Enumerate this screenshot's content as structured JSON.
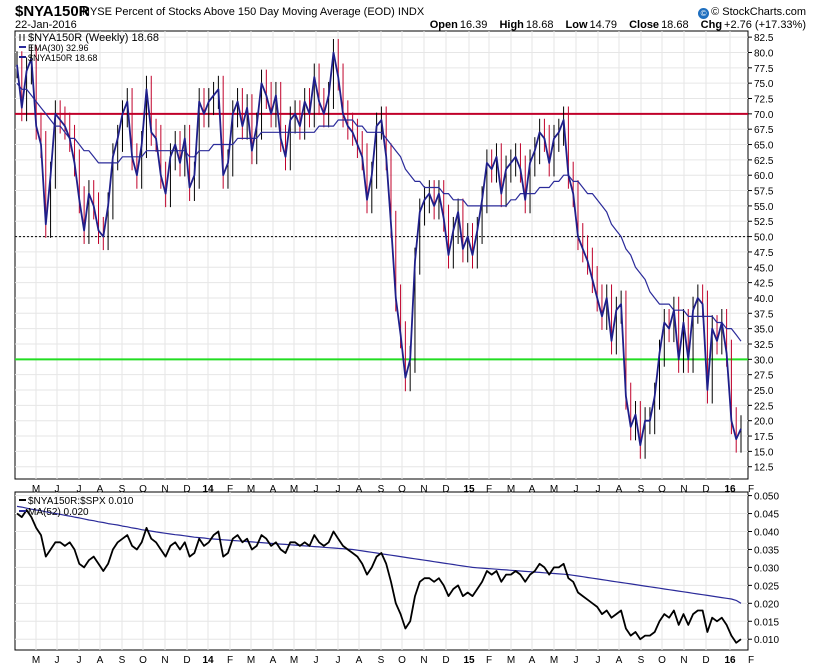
{
  "header": {
    "symbol": "$NYA150R",
    "description": "NYSE Percent of Stocks Above 150 Day Moving Average (EOD)  INDX",
    "date": "22-Jan-2016",
    "copyright": "© StockCharts.com",
    "ohlc": {
      "open_label": "Open",
      "open": "16.39",
      "high_label": "High",
      "high": "18.68",
      "low_label": "Low",
      "low": "14.79",
      "close_label": "Close",
      "close": "18.68",
      "chg_label": "Chg",
      "chg": "+2.76 (+17.33%)"
    }
  },
  "colors": {
    "price": "#1f1f8a",
    "ema": "#2b2b9a",
    "red_line": "#c0002a",
    "green_line": "#22dd22",
    "ratio": "#000000",
    "ratio_ma": "#2b2b9a",
    "grid": "#e6e6e6"
  },
  "chart_data": [
    {
      "type": "line",
      "title": "$NYA150R NYSE Percent of Stocks Above 150 Day Moving Average (EOD)",
      "legend": [
        "$NYA150R (Weekly) 18.68",
        "EMA(30) 32.96",
        "$NYA150R 18.68"
      ],
      "x_ticks": [
        "M",
        "J",
        "J",
        "A",
        "S",
        "O",
        "N",
        "D",
        "14",
        "F",
        "M",
        "A",
        "M",
        "J",
        "J",
        "A",
        "S",
        "O",
        "N",
        "D",
        "15",
        "F",
        "M",
        "A",
        "M",
        "J",
        "J",
        "A",
        "S",
        "O",
        "N",
        "D",
        "16",
        "F"
      ],
      "y_ticks": [
        "82.5",
        "80.0",
        "77.5",
        "75.0",
        "72.5",
        "70.0",
        "67.5",
        "65.0",
        "62.5",
        "60.0",
        "57.5",
        "55.0",
        "52.5",
        "50.0",
        "47.5",
        "45.0",
        "42.5",
        "40.0",
        "37.5",
        "35.0",
        "32.5",
        "30.0",
        "27.5",
        "25.0",
        "22.5",
        "20.0",
        "17.5",
        "15.0",
        "12.5"
      ],
      "ylim": [
        10.5,
        83.5
      ],
      "reference_lines": [
        {
          "value": 70,
          "style": "red"
        },
        {
          "value": 50,
          "style": "dotted"
        },
        {
          "value": 30,
          "style": "green"
        }
      ],
      "series": [
        {
          "name": "$NYA150R (Weekly)",
          "values": [
            78,
            71,
            77,
            79,
            68,
            65,
            52,
            60,
            70,
            69,
            68,
            66,
            62,
            56,
            51,
            57,
            55,
            51,
            50,
            55,
            63,
            66,
            70,
            72,
            63,
            60,
            65,
            74,
            67,
            66,
            60,
            57,
            63,
            65,
            62,
            66,
            58,
            60,
            72,
            70,
            72,
            73,
            74,
            60,
            62,
            70,
            72,
            68,
            71,
            64,
            68,
            75,
            73,
            70,
            73,
            66,
            63,
            69,
            70,
            68,
            72,
            70,
            76,
            72,
            70,
            73,
            80,
            76,
            70,
            68,
            67,
            65,
            63,
            56,
            60,
            68,
            69,
            63,
            52,
            40,
            34,
            27,
            30,
            46,
            54,
            56,
            57,
            55,
            57,
            53,
            47,
            51,
            54,
            48,
            50,
            47,
            51,
            56,
            62,
            61,
            63,
            57,
            61,
            62,
            63,
            61,
            56,
            62,
            64,
            67,
            66,
            62,
            66,
            67,
            69,
            60,
            57,
            50,
            48,
            46,
            43,
            40,
            37,
            40,
            33,
            38,
            39,
            24,
            19,
            21,
            16,
            20,
            20,
            24,
            31,
            36,
            35,
            38,
            30,
            36,
            30,
            38,
            40,
            39,
            25,
            35,
            33,
            36,
            31,
            20,
            17,
            18.68
          ]
        },
        {
          "name": "EMA(30)",
          "values": [
            75,
            74,
            74,
            73,
            72,
            71,
            70,
            69,
            68,
            68,
            67,
            66,
            66,
            65,
            64,
            64,
            63,
            62,
            62,
            62,
            62,
            62,
            63,
            63,
            63,
            63,
            63,
            64,
            64,
            64,
            64,
            64,
            64,
            64,
            64,
            64,
            63,
            63,
            64,
            64,
            64,
            65,
            65,
            65,
            65,
            65,
            66,
            66,
            66,
            66,
            66,
            67,
            67,
            67,
            67,
            67,
            67,
            67,
            67,
            67,
            67,
            67,
            67,
            68,
            68,
            68,
            68,
            69,
            69,
            69,
            69,
            68,
            68,
            67,
            67,
            67,
            67,
            66,
            65,
            64,
            63,
            61,
            60,
            59,
            59,
            58,
            58,
            58,
            58,
            57,
            57,
            56,
            56,
            56,
            55,
            55,
            55,
            55,
            55,
            55,
            55,
            55,
            55,
            56,
            56,
            57,
            57,
            57,
            57,
            58,
            58,
            58,
            59,
            59,
            60,
            60,
            59,
            59,
            58,
            57,
            57,
            56,
            55,
            54,
            52,
            51,
            50,
            48,
            47,
            45,
            44,
            43,
            41,
            40,
            39,
            39,
            39,
            38,
            38,
            38,
            37,
            37,
            37,
            37,
            37,
            37,
            36,
            36,
            35,
            35,
            34,
            32.96
          ]
        }
      ]
    },
    {
      "type": "line",
      "title": "$NYA150R:$SPX",
      "legend": [
        "$NYA150R:$SPX 0.010",
        "MA(52) 0.020"
      ],
      "x_ticks": [
        "M",
        "J",
        "J",
        "A",
        "S",
        "O",
        "N",
        "D",
        "14",
        "F",
        "M",
        "A",
        "M",
        "J",
        "J",
        "A",
        "S",
        "O",
        "N",
        "D",
        "15",
        "F",
        "M",
        "A",
        "M",
        "J",
        "J",
        "A",
        "S",
        "O",
        "N",
        "D",
        "16",
        "F"
      ],
      "y_ticks": [
        "0.050",
        "0.045",
        "0.040",
        "0.035",
        "0.030",
        "0.025",
        "0.020",
        "0.015",
        "0.010"
      ],
      "ylim": [
        0.007,
        0.051
      ],
      "series": [
        {
          "name": "$NYA150R:$SPX",
          "values": [
            0.045,
            0.044,
            0.046,
            0.044,
            0.041,
            0.039,
            0.033,
            0.035,
            0.037,
            0.037,
            0.036,
            0.037,
            0.035,
            0.031,
            0.03,
            0.032,
            0.033,
            0.031,
            0.029,
            0.031,
            0.035,
            0.037,
            0.038,
            0.039,
            0.036,
            0.035,
            0.037,
            0.041,
            0.038,
            0.037,
            0.035,
            0.033,
            0.036,
            0.037,
            0.035,
            0.037,
            0.033,
            0.034,
            0.038,
            0.036,
            0.037,
            0.039,
            0.04,
            0.033,
            0.034,
            0.038,
            0.039,
            0.037,
            0.038,
            0.035,
            0.036,
            0.039,
            0.038,
            0.036,
            0.037,
            0.035,
            0.034,
            0.037,
            0.037,
            0.036,
            0.037,
            0.036,
            0.039,
            0.037,
            0.036,
            0.037,
            0.04,
            0.038,
            0.036,
            0.035,
            0.034,
            0.033,
            0.031,
            0.028,
            0.03,
            0.033,
            0.034,
            0.031,
            0.026,
            0.02,
            0.017,
            0.013,
            0.015,
            0.022,
            0.026,
            0.027,
            0.027,
            0.026,
            0.027,
            0.025,
            0.022,
            0.024,
            0.025,
            0.022,
            0.023,
            0.022,
            0.024,
            0.026,
            0.029,
            0.028,
            0.029,
            0.026,
            0.028,
            0.028,
            0.029,
            0.028,
            0.026,
            0.028,
            0.029,
            0.031,
            0.03,
            0.028,
            0.03,
            0.03,
            0.031,
            0.027,
            0.026,
            0.023,
            0.022,
            0.021,
            0.02,
            0.019,
            0.017,
            0.018,
            0.016,
            0.017,
            0.018,
            0.013,
            0.011,
            0.012,
            0.01,
            0.011,
            0.011,
            0.012,
            0.015,
            0.017,
            0.016,
            0.018,
            0.014,
            0.017,
            0.014,
            0.017,
            0.018,
            0.018,
            0.012,
            0.016,
            0.015,
            0.016,
            0.014,
            0.011,
            0.009,
            0.01
          ]
        },
        {
          "name": "MA(52)",
          "values": [
            0.047,
            0.0468,
            0.0465,
            0.0462,
            0.046,
            0.0458,
            0.0455,
            0.0452,
            0.045,
            0.0448,
            0.0445,
            0.0443,
            0.044,
            0.0438,
            0.0435,
            0.0432,
            0.043,
            0.0427,
            0.0425,
            0.0422,
            0.042,
            0.0418,
            0.0415,
            0.0413,
            0.041,
            0.0408,
            0.0405,
            0.0403,
            0.0401,
            0.0399,
            0.0397,
            0.0395,
            0.0393,
            0.0391,
            0.039,
            0.0388,
            0.0386,
            0.0384,
            0.0383,
            0.0382,
            0.038,
            0.0379,
            0.0378,
            0.0377,
            0.0376,
            0.0375,
            0.0374,
            0.0373,
            0.0372,
            0.0371,
            0.037,
            0.0369,
            0.0368,
            0.0367,
            0.0366,
            0.0365,
            0.0364,
            0.0363,
            0.0362,
            0.0361,
            0.036,
            0.0359,
            0.0358,
            0.0357,
            0.0356,
            0.0355,
            0.0354,
            0.0353,
            0.0352,
            0.0351,
            0.035,
            0.0348,
            0.0346,
            0.0344,
            0.0342,
            0.034,
            0.0338,
            0.0336,
            0.0334,
            0.0332,
            0.033,
            0.0328,
            0.0326,
            0.0324,
            0.0322,
            0.032,
            0.0318,
            0.0316,
            0.0314,
            0.0312,
            0.031,
            0.0308,
            0.0306,
            0.0304,
            0.0302,
            0.03,
            0.0299,
            0.0298,
            0.0297,
            0.0296,
            0.0295,
            0.0294,
            0.0293,
            0.0292,
            0.0291,
            0.029,
            0.0289,
            0.0288,
            0.0287,
            0.0286,
            0.0285,
            0.0284,
            0.0283,
            0.0282,
            0.0281,
            0.028,
            0.0278,
            0.0276,
            0.0274,
            0.0272,
            0.027,
            0.0268,
            0.0266,
            0.0264,
            0.0262,
            0.026,
            0.0258,
            0.0256,
            0.0254,
            0.0252,
            0.025,
            0.0248,
            0.0246,
            0.0244,
            0.0242,
            0.024,
            0.0238,
            0.0236,
            0.0234,
            0.0232,
            0.023,
            0.0228,
            0.0226,
            0.0224,
            0.0222,
            0.022,
            0.0218,
            0.0216,
            0.0214,
            0.0212,
            0.0208,
            0.02
          ]
        }
      ]
    }
  ]
}
